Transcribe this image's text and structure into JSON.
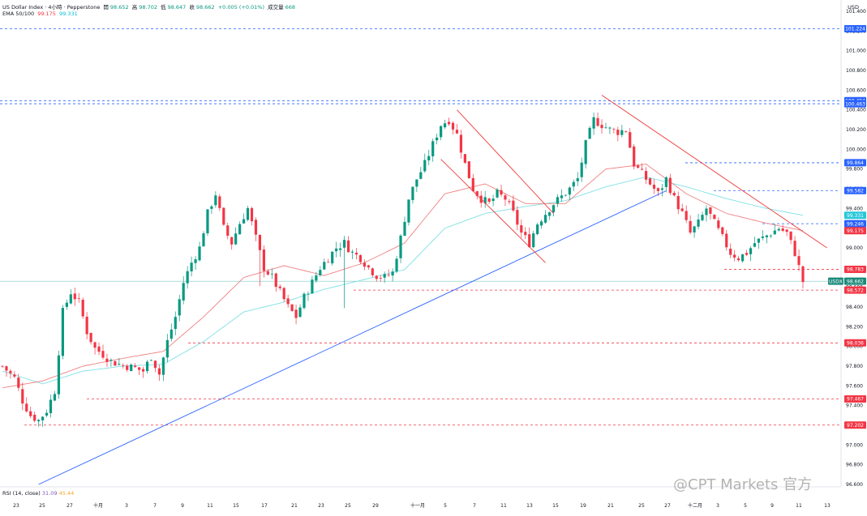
{
  "header": {
    "symbol_title": "US Dollar Index · 4小時 · Pepperstone",
    "open_label": "開",
    "open_value": "98.652",
    "high_label": "高",
    "high_value": "98.702",
    "low_label": "低",
    "low_value": "98.647",
    "close_label": "收",
    "close_value": "98.662",
    "change": "+0.005 (+0.01%)",
    "volume_label": "成交量",
    "volume_value": "668",
    "ema_label": "EMA 50/100",
    "ema50_value": "99.175",
    "ema100_value": "99.331",
    "currency": "USD"
  },
  "rsi": {
    "label": "RSI (14, close)",
    "value1": "31.09",
    "value2": "45.44"
  },
  "watermark": "@CPT Markets 官方",
  "colors": {
    "up": "#089981",
    "down": "#f23645",
    "ema50": "#f08080",
    "ema100": "#7fe0e6",
    "trend_blue": "#2962ff",
    "channel_red": "#ef3b3b",
    "level_blue": "#2962ff",
    "level_red": "#f23645"
  },
  "chart_data": {
    "type": "candlestick",
    "title": "US Dollar Index · 4小時 · Pepperstone",
    "ylim": [
      96.6,
      101.45
    ],
    "y_ticks": [
      "101.400",
      "101.200",
      "101.000",
      "100.800",
      "100.600",
      "100.400",
      "100.200",
      "100.000",
      "99.800",
      "99.600",
      "99.400",
      "99.200",
      "99.000",
      "98.800",
      "98.600",
      "98.400",
      "98.200",
      "98.000",
      "97.800",
      "97.600",
      "97.400",
      "97.200",
      "97.000",
      "96.800",
      "96.600"
    ],
    "x_ticks": [
      "23",
      "25",
      "27",
      "十月",
      "3",
      "7",
      "9",
      "11",
      "15",
      "17",
      "21",
      "23",
      "25",
      "29",
      "十一月",
      "5",
      "7",
      "11",
      "13",
      "15",
      "19",
      "21",
      "25",
      "27",
      "十二月",
      "3",
      "5",
      "9",
      "11",
      "13"
    ],
    "price_levels": [
      {
        "label": "101.224",
        "value": 101.224,
        "color": "blue"
      },
      {
        "label": "100.494",
        "value": 100.494,
        "color": "blue"
      },
      {
        "label": "100.463",
        "value": 100.463,
        "color": "blue"
      },
      {
        "label": "99.864",
        "value": 99.864,
        "color": "blue"
      },
      {
        "label": "99.582",
        "value": 99.582,
        "color": "blue"
      },
      {
        "label": "99.331",
        "value": 99.331,
        "color": "cyan"
      },
      {
        "label": "99.246",
        "value": 99.246,
        "color": "blue"
      },
      {
        "label": "99.175",
        "value": 99.175,
        "color": "red"
      },
      {
        "label": "98.783",
        "value": 98.783,
        "color": "red"
      },
      {
        "label": "98.662",
        "value": 98.662,
        "color": "teal"
      },
      {
        "label": "98.572",
        "value": 98.572,
        "color": "red"
      },
      {
        "label": "98.036",
        "value": 98.036,
        "color": "red"
      },
      {
        "label": "97.467",
        "value": 97.467,
        "color": "red"
      },
      {
        "label": "97.202",
        "value": 97.202,
        "color": "red"
      }
    ],
    "last_price_tag": "USDX",
    "close_path": [
      [
        0,
        97.8
      ],
      [
        3,
        97.68
      ],
      [
        5,
        97.45
      ],
      [
        7,
        97.3
      ],
      [
        9,
        97.25
      ],
      [
        11,
        97.35
      ],
      [
        13,
        97.55
      ],
      [
        15,
        98.35
      ],
      [
        17,
        98.55
      ],
      [
        19,
        98.45
      ],
      [
        21,
        98.15
      ],
      [
        23,
        97.98
      ],
      [
        25,
        97.92
      ],
      [
        27,
        97.85
      ],
      [
        29,
        97.82
      ],
      [
        31,
        97.8
      ],
      [
        33,
        97.78
      ],
      [
        35,
        97.75
      ],
      [
        37,
        97.9
      ],
      [
        39,
        97.72
      ],
      [
        41,
        98.05
      ],
      [
        43,
        98.3
      ],
      [
        45,
        98.65
      ],
      [
        47,
        98.85
      ],
      [
        49,
        99.0
      ],
      [
        51,
        99.35
      ],
      [
        53,
        99.55
      ],
      [
        55,
        99.2
      ],
      [
        57,
        99.05
      ],
      [
        59,
        99.25
      ],
      [
        61,
        99.4
      ],
      [
        63,
        99.1
      ],
      [
        65,
        98.8
      ],
      [
        67,
        98.7
      ],
      [
        69,
        98.55
      ],
      [
        71,
        98.4
      ],
      [
        73,
        98.3
      ],
      [
        75,
        98.5
      ],
      [
        77,
        98.65
      ],
      [
        79,
        98.8
      ],
      [
        81,
        98.9
      ],
      [
        83,
        99.0
      ],
      [
        85,
        99.05
      ],
      [
        87,
        98.95
      ],
      [
        89,
        98.9
      ],
      [
        91,
        98.8
      ],
      [
        93,
        98.72
      ],
      [
        95,
        98.7
      ],
      [
        97,
        98.75
      ],
      [
        99,
        99.1
      ],
      [
        101,
        99.5
      ],
      [
        103,
        99.7
      ],
      [
        105,
        99.85
      ],
      [
        107,
        100.05
      ],
      [
        109,
        100.25
      ],
      [
        111,
        100.3
      ],
      [
        113,
        100.15
      ],
      [
        115,
        99.85
      ],
      [
        117,
        99.6
      ],
      [
        119,
        99.5
      ],
      [
        121,
        99.45
      ],
      [
        123,
        99.55
      ],
      [
        125,
        99.5
      ],
      [
        127,
        99.35
      ],
      [
        129,
        99.15
      ],
      [
        131,
        99.05
      ],
      [
        133,
        99.25
      ],
      [
        135,
        99.35
      ],
      [
        137,
        99.45
      ],
      [
        139,
        99.52
      ],
      [
        141,
        99.6
      ],
      [
        143,
        99.7
      ],
      [
        145,
        100.05
      ],
      [
        147,
        100.3
      ],
      [
        149,
        100.25
      ],
      [
        151,
        100.2
      ],
      [
        153,
        100.18
      ],
      [
        155,
        100.2
      ],
      [
        157,
        99.85
      ],
      [
        159,
        99.75
      ],
      [
        161,
        99.65
      ],
      [
        163,
        99.55
      ],
      [
        165,
        99.7
      ],
      [
        167,
        99.5
      ],
      [
        169,
        99.35
      ],
      [
        171,
        99.15
      ],
      [
        173,
        99.25
      ],
      [
        175,
        99.4
      ],
      [
        177,
        99.25
      ],
      [
        179,
        99.1
      ],
      [
        181,
        98.95
      ],
      [
        183,
        98.9
      ],
      [
        185,
        98.95
      ],
      [
        187,
        99.05
      ],
      [
        189,
        99.1
      ],
      [
        191,
        99.15
      ],
      [
        193,
        99.2
      ],
      [
        195,
        99.15
      ],
      [
        197,
        98.95
      ],
      [
        199,
        98.66
      ]
    ],
    "ema50_path": [
      [
        0,
        97.58
      ],
      [
        10,
        97.65
      ],
      [
        20,
        97.8
      ],
      [
        30,
        97.88
      ],
      [
        40,
        97.95
      ],
      [
        50,
        98.3
      ],
      [
        60,
        98.7
      ],
      [
        70,
        98.82
      ],
      [
        80,
        98.72
      ],
      [
        90,
        98.85
      ],
      [
        100,
        99.05
      ],
      [
        110,
        99.55
      ],
      [
        120,
        99.65
      ],
      [
        130,
        99.45
      ],
      [
        140,
        99.45
      ],
      [
        150,
        99.8
      ],
      [
        160,
        99.85
      ],
      [
        170,
        99.55
      ],
      [
        180,
        99.35
      ],
      [
        190,
        99.25
      ],
      [
        199,
        99.175
      ]
    ],
    "ema100_path": [
      [
        0,
        97.75
      ],
      [
        10,
        97.62
      ],
      [
        20,
        97.75
      ],
      [
        30,
        97.8
      ],
      [
        40,
        97.82
      ],
      [
        50,
        98.05
      ],
      [
        60,
        98.35
      ],
      [
        70,
        98.45
      ],
      [
        80,
        98.58
      ],
      [
        90,
        98.68
      ],
      [
        100,
        98.78
      ],
      [
        110,
        99.2
      ],
      [
        120,
        99.35
      ],
      [
        130,
        99.42
      ],
      [
        140,
        99.48
      ],
      [
        150,
        99.62
      ],
      [
        160,
        99.72
      ],
      [
        170,
        99.62
      ],
      [
        180,
        99.5
      ],
      [
        190,
        99.4
      ],
      [
        199,
        99.331
      ]
    ],
    "trendlines": [
      {
        "name": "ascending support",
        "color": "blue",
        "from": [
          9,
          96.6
        ],
        "to": [
          165,
          99.58
        ]
      },
      {
        "name": "channel upper",
        "color": "red",
        "from": [
          113,
          100.4
        ],
        "to": [
          137,
          99.35
        ]
      },
      {
        "name": "channel lower",
        "color": "red",
        "from": [
          109,
          99.9
        ],
        "to": [
          135,
          98.85
        ]
      },
      {
        "name": "descending resistance",
        "color": "red",
        "from": [
          149,
          100.55
        ],
        "to": [
          205,
          99.0
        ]
      }
    ],
    "rsi_values": [
      "31.09",
      "45.44"
    ]
  }
}
